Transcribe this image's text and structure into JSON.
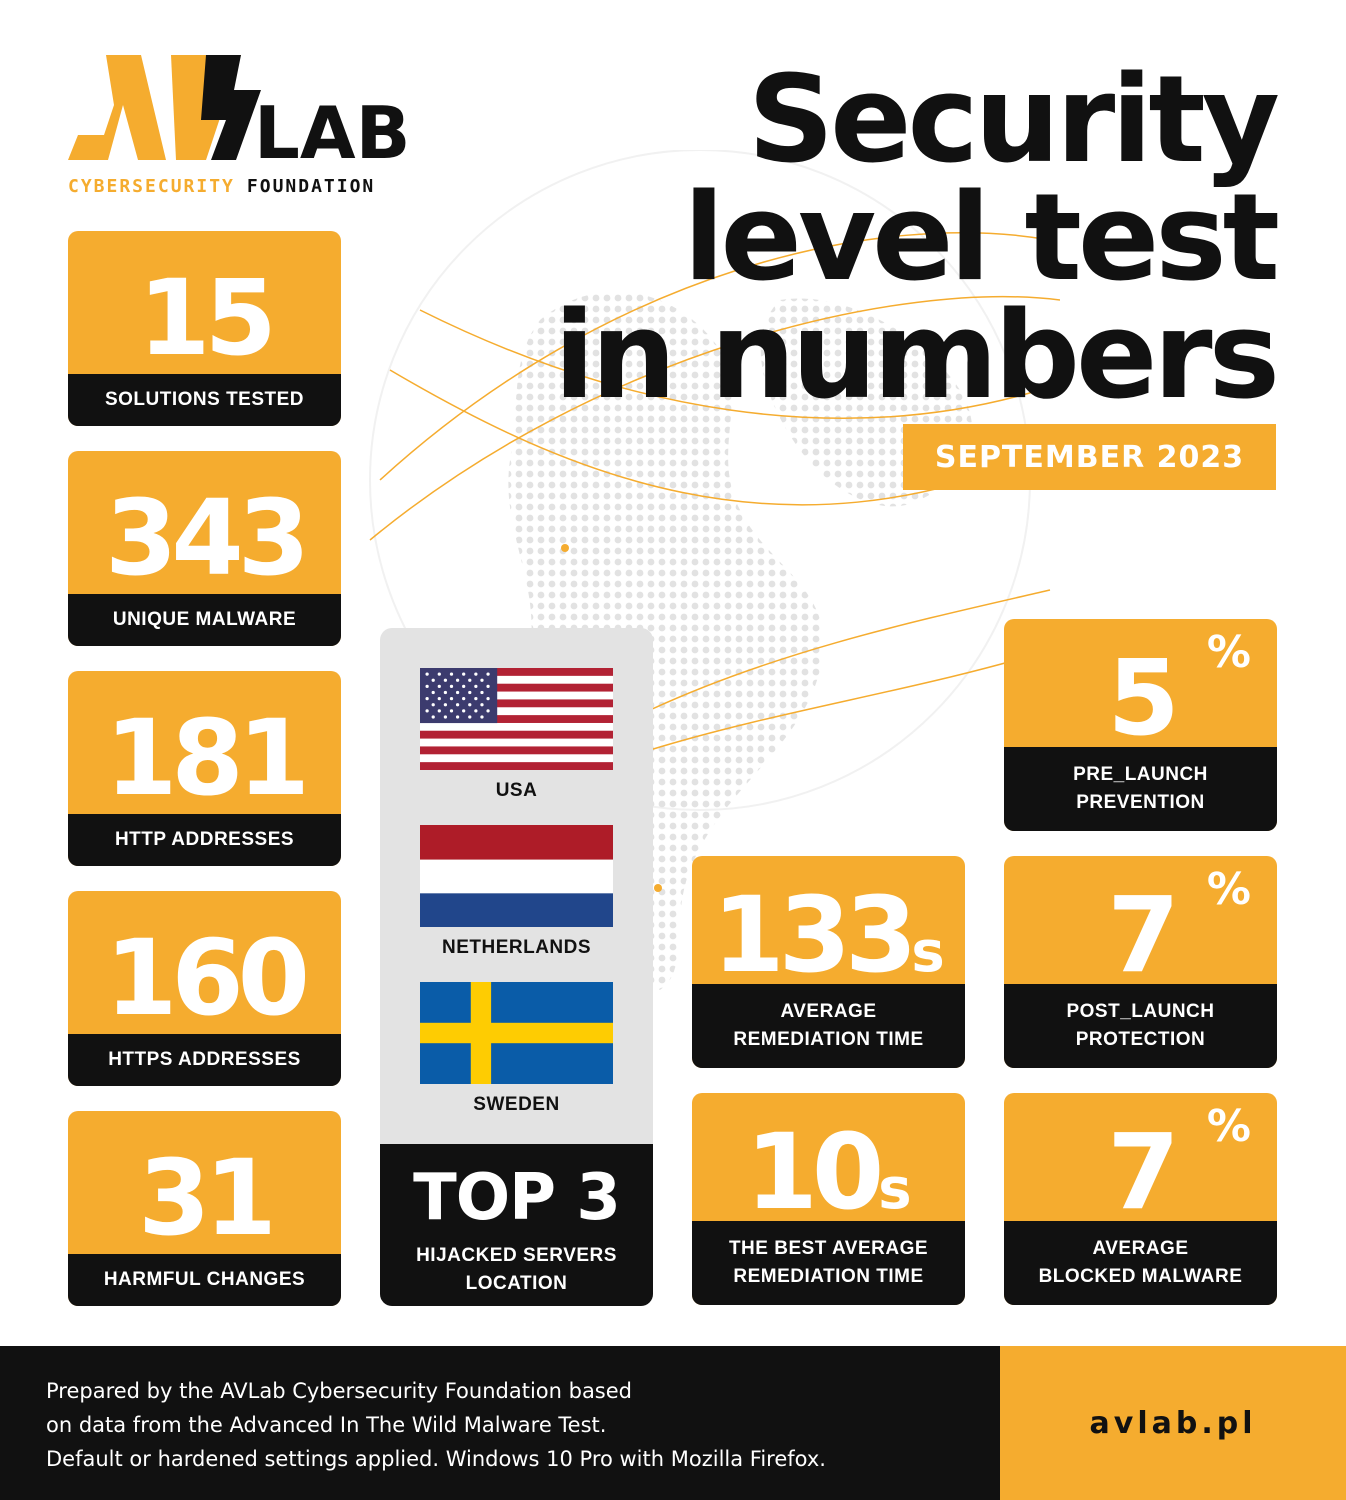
{
  "brand": {
    "logo_text": "AVLAB",
    "sub_left": "CYBERSECURITY",
    "sub_right": "FOUNDATION"
  },
  "title": {
    "line1": "Security",
    "line2": "level test",
    "line3": "in numbers",
    "date": "SEPTEMBER 2023"
  },
  "stats_left": [
    {
      "value": "15",
      "label": "SOLUTIONS TESTED"
    },
    {
      "value": "343",
      "label": "UNIQUE MALWARE"
    },
    {
      "value": "181",
      "label": "HTTP ADDRESSES"
    },
    {
      "value": "160",
      "label": "HTTPS ADDRESSES"
    },
    {
      "value": "31",
      "label": "HARMFUL CHANGES"
    }
  ],
  "top3": {
    "countries": [
      "USA",
      "NETHERLANDS",
      "SWEDEN"
    ],
    "heading": "TOP 3",
    "subtitle_line1": "HIJACKED SERVERS",
    "subtitle_line2": "LOCATION"
  },
  "stats_right": {
    "pre_launch": {
      "value": "5",
      "unit": "%",
      "line1": "PRE_LAUNCH",
      "line2": "PREVENTION"
    },
    "avg_remediation": {
      "value": "133",
      "unit": "s",
      "line1": "AVERAGE",
      "line2": "REMEDIATION TIME"
    },
    "post_launch": {
      "value": "7",
      "unit": "%",
      "line1": "POST_LAUNCH",
      "line2": "PROTECTION"
    },
    "best_remediation": {
      "value": "10",
      "unit": "s",
      "line1": "THE BEST AVERAGE",
      "line2": "REMEDIATION TIME"
    },
    "avg_blocked": {
      "value": "7",
      "unit": "%",
      "line1": "AVERAGE",
      "line2": "BLOCKED MALWARE"
    }
  },
  "footer": {
    "line1": "Prepared by the AVLab Cybersecurity Foundation based",
    "line2": "on data from the Advanced In The Wild Malware Test.",
    "line3": "Default or hardened settings applied. Windows 10 Pro with Mozilla Firefox.",
    "site": "avlab.pl"
  },
  "colors": {
    "accent": "#f5ac2f",
    "dark": "#111111",
    "panel": "#e3e3e3"
  }
}
